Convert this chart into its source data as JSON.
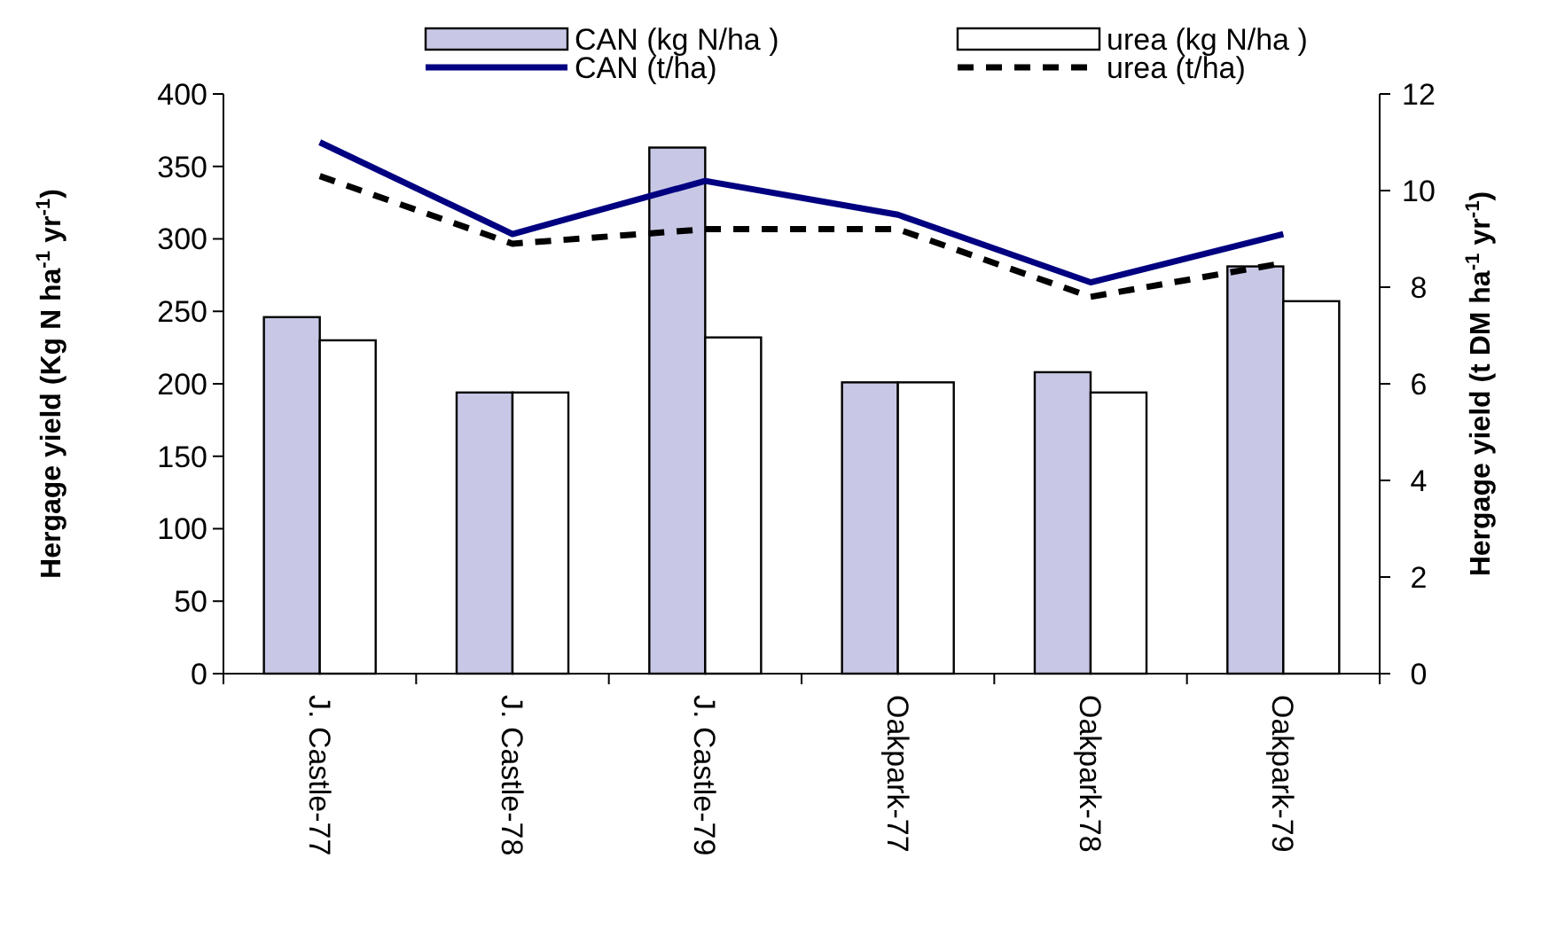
{
  "chart_data": {
    "type": "bar",
    "ylabel": "Hergage yield (Kg N ha$^{-1}$ yr$^{-1}$)",
    "y2label": "Hergage yield (t DM ha$^{-1}$ yr$^{-1}$)",
    "categories": [
      "J. Castle-77",
      "J. Castle-78",
      "J. Castle-79",
      "Oakpark-77",
      "Oakpark-78",
      "Oakpark-79"
    ],
    "series": [
      {
        "name": "CAN (kg N/ha )",
        "color": "#c8c8e6",
        "values": [
          246,
          194,
          363,
          201,
          208,
          281
        ]
      },
      {
        "name": "urea (kg N/ha )",
        "color": "#ffffff",
        "values": [
          230,
          194,
          232,
          201,
          194,
          257
        ]
      },
      {
        "name": "CAN (t/ha)",
        "type": "line",
        "axis": "y2",
        "color": "#000080",
        "line_style": "solid",
        "values": [
          11.0,
          9.1,
          10.2,
          9.5,
          8.1,
          9.1
        ]
      },
      {
        "name": "urea (t/ha)",
        "type": "line",
        "axis": "y2",
        "color": "#000000",
        "line_style": "dashed",
        "values": [
          10.3,
          8.9,
          9.2,
          9.2,
          7.8,
          8.5
        ]
      }
    ],
    "ylim": [
      0,
      400
    ],
    "yticks": [
      0,
      50,
      100,
      150,
      200,
      250,
      300,
      350,
      400
    ],
    "y2lim": [
      0,
      12
    ],
    "y2ticks": [
      0,
      2,
      4,
      6,
      8,
      10,
      12
    ],
    "grid": false,
    "legend": "top",
    "marker": "none"
  }
}
